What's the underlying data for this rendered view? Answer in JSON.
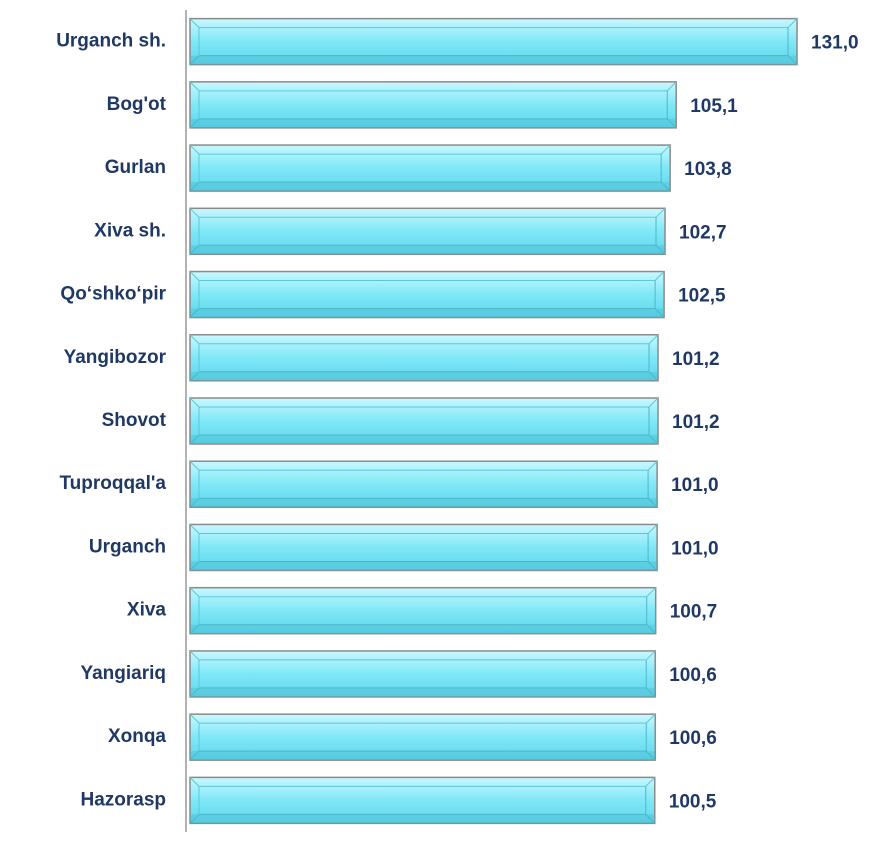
{
  "chart_data": {
    "type": "barh",
    "categories": [
      "Urganch sh.",
      "Bog'ot",
      "Gurlan",
      "Xiva sh.",
      "Qo‘shko‘pir",
      "Yangibozor",
      "Shovot",
      "Tuproqqal'a",
      "Urganch",
      "Xiva",
      "Yangiariq",
      "Xonqa",
      "Hazorasp"
    ],
    "values": [
      131.0,
      105.1,
      103.8,
      102.7,
      102.5,
      101.2,
      101.2,
      101.0,
      101.0,
      100.7,
      100.6,
      100.6,
      100.5
    ],
    "value_labels": [
      "131,0",
      "105,1",
      "103,8",
      "102,7",
      "102,5",
      "101,2",
      "101,2",
      "101,0",
      "101,0",
      "100,7",
      "100,6",
      "100,6",
      "100,5"
    ],
    "color": "#7fe8f7",
    "xlim": [
      0,
      140
    ]
  }
}
